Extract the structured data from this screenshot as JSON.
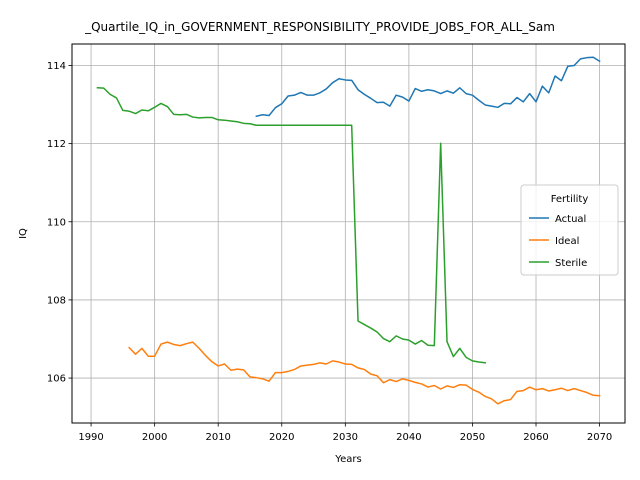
{
  "chart_data": {
    "type": "line",
    "title": "_Quartile_IQ_in_GOVERNMENT_RESPONSIBILITY_PROVIDE_JOBS_FOR_ALL_Sam",
    "xlabel": "Years",
    "ylabel": "IQ",
    "xlim": [
      1987,
      2074
    ],
    "ylim": [
      104.85,
      114.55
    ],
    "xticks": [
      1990,
      2000,
      2010,
      2020,
      2030,
      2040,
      2050,
      2060,
      2070
    ],
    "yticks": [
      106,
      108,
      110,
      112,
      114
    ],
    "grid": true,
    "legend": {
      "title": "Fertility",
      "placement": "center-right"
    },
    "series": [
      {
        "name": "Actual",
        "color": "#1f77b4",
        "x": [
          2016,
          2017,
          2018,
          2019,
          2020,
          2021,
          2022,
          2023,
          2024,
          2025,
          2026,
          2027,
          2028,
          2029,
          2030,
          2031,
          2032,
          2033,
          2034,
          2035,
          2036,
          2037,
          2038,
          2039,
          2040,
          2041,
          2042,
          2043,
          2044,
          2045,
          2046,
          2047,
          2048,
          2049,
          2050,
          2051,
          2052,
          2053,
          2054,
          2055,
          2056,
          2057,
          2058,
          2059,
          2060,
          2061,
          2062,
          2063,
          2064,
          2065,
          2066,
          2067,
          2068,
          2069,
          2070
        ],
        "values": [
          112.7,
          112.74,
          112.72,
          112.92,
          113.02,
          113.22,
          113.24,
          113.31,
          113.24,
          113.24,
          113.3,
          113.4,
          113.56,
          113.66,
          113.63,
          113.62,
          113.38,
          113.26,
          113.16,
          113.05,
          113.06,
          112.96,
          113.24,
          113.19,
          113.09,
          113.41,
          113.34,
          113.38,
          113.35,
          113.28,
          113.35,
          113.29,
          113.43,
          113.28,
          113.24,
          113.11,
          112.99,
          112.96,
          112.93,
          113.03,
          113.02,
          113.18,
          113.07,
          113.28,
          113.07,
          113.47,
          113.3,
          113.73,
          113.61,
          113.98,
          114.0,
          114.17,
          114.2,
          114.21,
          114.11
        ]
      },
      {
        "name": "Ideal",
        "color": "#ff7f0e",
        "x": [
          1996,
          1997,
          1998,
          1999,
          2000,
          2001,
          2002,
          2003,
          2004,
          2005,
          2006,
          2007,
          2008,
          2009,
          2010,
          2011,
          2012,
          2013,
          2014,
          2015,
          2016,
          2017,
          2018,
          2019,
          2020,
          2021,
          2022,
          2023,
          2024,
          2025,
          2026,
          2027,
          2028,
          2029,
          2030,
          2031,
          2032,
          2033,
          2034,
          2035,
          2036,
          2037,
          2038,
          2039,
          2040,
          2041,
          2042,
          2043,
          2044,
          2045,
          2046,
          2047,
          2048,
          2049,
          2050,
          2051,
          2052,
          2053,
          2054,
          2055,
          2056,
          2057,
          2058,
          2059,
          2060,
          2061,
          2062,
          2063,
          2064,
          2065,
          2066,
          2067,
          2068,
          2069,
          2070
        ],
        "values": [
          106.78,
          106.61,
          106.76,
          106.56,
          106.56,
          106.87,
          106.92,
          106.86,
          106.83,
          106.88,
          106.92,
          106.76,
          106.58,
          106.42,
          106.31,
          106.36,
          106.2,
          106.23,
          106.21,
          106.03,
          106.01,
          105.98,
          105.92,
          106.14,
          106.14,
          106.17,
          106.22,
          106.31,
          106.33,
          106.35,
          106.39,
          106.36,
          106.44,
          106.41,
          106.36,
          106.35,
          106.26,
          106.22,
          106.1,
          106.06,
          105.88,
          105.96,
          105.91,
          105.98,
          105.94,
          105.89,
          105.85,
          105.77,
          105.81,
          105.72,
          105.8,
          105.76,
          105.83,
          105.82,
          105.71,
          105.64,
          105.53,
          105.47,
          105.34,
          105.42,
          105.45,
          105.66,
          105.68,
          105.77,
          105.7,
          105.73,
          105.67,
          105.7,
          105.74,
          105.68,
          105.73,
          105.68,
          105.63,
          105.56,
          105.55
        ]
      },
      {
        "name": "Sterile",
        "color": "#2ca02c",
        "x": [
          1991,
          1992,
          1993,
          1994,
          1995,
          1996,
          1997,
          1998,
          1999,
          2000,
          2001,
          2002,
          2003,
          2004,
          2005,
          2006,
          2007,
          2008,
          2009,
          2010,
          2011,
          2012,
          2013,
          2014,
          2015,
          2016,
          2017,
          2018,
          2019,
          2020,
          2021,
          2022,
          2023,
          2024,
          2025,
          2026,
          2027,
          2028,
          2029,
          2030,
          2031,
          2032,
          2033,
          2034,
          2035,
          2036,
          2037,
          2038,
          2039,
          2040,
          2041,
          2042,
          2043,
          2044,
          2045,
          2046,
          2047,
          2048,
          2049,
          2050,
          2051,
          2052
        ],
        "values": [
          113.43,
          113.42,
          113.26,
          113.17,
          112.85,
          112.83,
          112.77,
          112.86,
          112.84,
          112.93,
          113.03,
          112.95,
          112.75,
          112.74,
          112.75,
          112.68,
          112.66,
          112.67,
          112.67,
          112.61,
          112.6,
          112.58,
          112.56,
          112.52,
          112.51,
          112.47,
          112.47,
          112.47,
          112.47,
          112.47,
          112.47,
          112.47,
          112.47,
          112.47,
          112.47,
          112.47,
          112.47,
          112.47,
          112.47,
          112.47,
          112.47,
          107.46,
          107.37,
          107.28,
          107.18,
          107.01,
          106.93,
          107.08,
          107.0,
          106.97,
          106.87,
          106.96,
          106.84,
          106.83,
          112.01,
          106.93,
          106.55,
          106.76,
          106.53,
          106.44,
          106.41,
          106.39
        ]
      }
    ]
  }
}
